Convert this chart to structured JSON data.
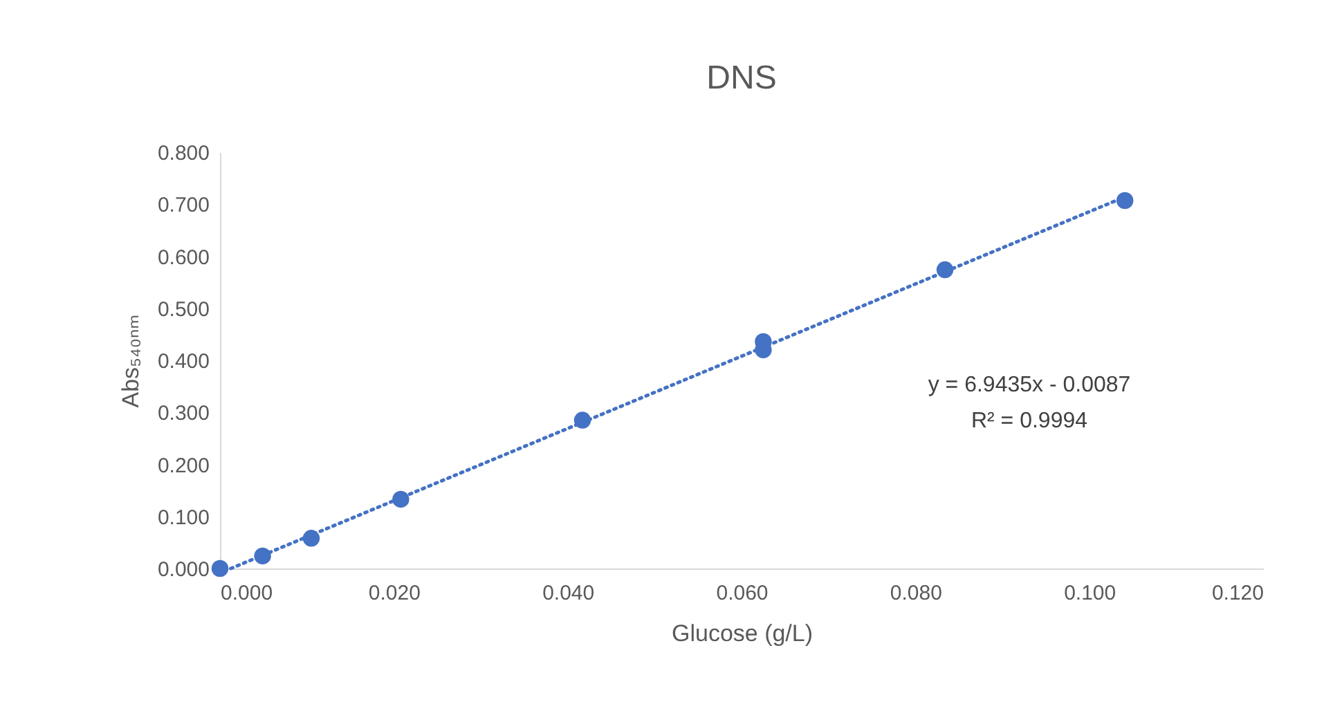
{
  "chart_data": {
    "type": "scatter",
    "title": "DNS",
    "xlabel": "Glucose (g/L)",
    "ylabel": "Abs₅₄₀ₙₘ",
    "x": [
      0,
      0.0049,
      0.0105,
      0.0208,
      0.0417,
      0.0625,
      0.0625,
      0.0834,
      0.1041
    ],
    "series": [
      {
        "color": "#4472c4",
        "values": [
          0,
          0.024,
          0.058,
          0.133,
          0.285,
          0.436,
          0.42,
          0.574,
          0.707
        ]
      },
      {
        "type": "line",
        "color": "#4472c4",
        "line_style": "dotted",
        "marker": "none",
        "x": [
          0.00125,
          0.1041
        ],
        "values": [
          0,
          0.714
        ]
      }
    ],
    "marker": "circle",
    "xlim": [
      0,
      0.12
    ],
    "xticks": [
      {
        "value": 0,
        "label": "0.000"
      },
      {
        "value": 0.02,
        "label": "0.020"
      },
      {
        "value": 0.04,
        "label": "0.040"
      },
      {
        "value": 0.06,
        "label": "0.060"
      },
      {
        "value": 0.08,
        "label": "0.080"
      },
      {
        "value": 0.1,
        "label": "0.100"
      },
      {
        "value": 0.12,
        "label": "0.120"
      }
    ],
    "ylim": [
      0,
      0.8
    ],
    "yticks": [
      {
        "value": 0,
        "label": "0.000"
      },
      {
        "value": 0.1,
        "label": "0.100"
      },
      {
        "value": 0.2,
        "label": "0.200"
      },
      {
        "value": 0.3,
        "label": "0.300"
      },
      {
        "value": 0.4,
        "label": "0.400"
      },
      {
        "value": 0.5,
        "label": "0.500"
      },
      {
        "value": 0.6,
        "label": "0.600"
      },
      {
        "value": 0.7,
        "label": "0.700"
      },
      {
        "value": 0.8,
        "label": "0.800"
      }
    ],
    "grid": false,
    "annotations": [
      "y = 6.9435x - 0.0087",
      "R² = 0.9994"
    ]
  }
}
